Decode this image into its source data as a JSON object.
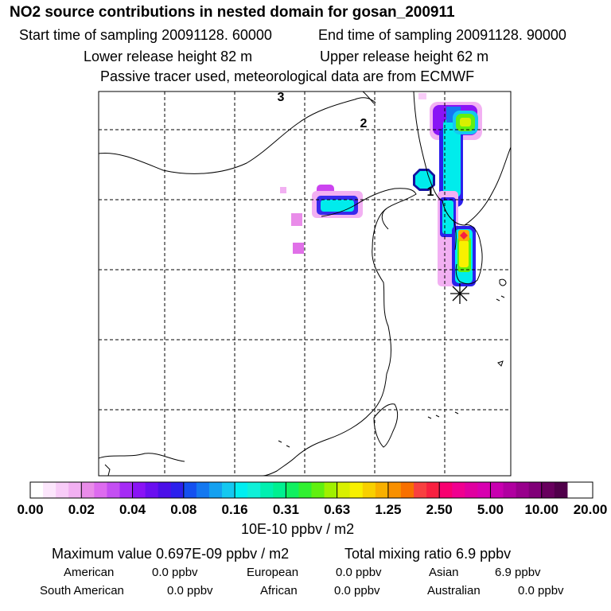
{
  "header": {
    "title": "NO2 source contributions in nested domain for gosan_200911",
    "start_time": "Start time of sampling 20091128. 60000",
    "end_time": "End time of sampling 20091128. 90000",
    "lower_height": "Lower release height   82 m",
    "upper_height": "Upper release height   62 m",
    "tracer_note": "Passive tracer used, meteorological data are from ECMWF"
  },
  "map": {
    "day_labels": [
      "3",
      "2",
      "1"
    ],
    "receptor_marker": "asterisk-icon",
    "colors": {
      "grid": "#000000",
      "coast": "#000000"
    }
  },
  "colorbar": {
    "ticks": [
      "0.00",
      "0.02",
      "0.04",
      "0.08",
      "0.16",
      "0.31",
      "0.63",
      "1.25",
      "2.50",
      "5.00",
      "10.00",
      "20.00"
    ],
    "colors": [
      "#ffffff",
      "#fce6fc",
      "#f8ccf8",
      "#f2b0f2",
      "#e98ce9",
      "#dd6bef",
      "#c44ff2",
      "#a52cf5",
      "#8a14f5",
      "#6a10f0",
      "#4b10e8",
      "#2c20ec",
      "#1450f0",
      "#1478f0",
      "#14a0f0",
      "#14c8f0",
      "#00eef0",
      "#10f0d8",
      "#00f0b0",
      "#00f090",
      "#10f060",
      "#30f030",
      "#60f010",
      "#a0f000",
      "#d8f000",
      "#f8f000",
      "#f8d000",
      "#f8b000",
      "#f89000",
      "#f87000",
      "#f84040",
      "#f82040",
      "#f80070",
      "#f00090",
      "#e000a0",
      "#d800b0",
      "#c800b0",
      "#b000a0",
      "#98008c",
      "#800078",
      "#68005e",
      "#50004a"
    ],
    "unit": "10E-10 ppbv / m2"
  },
  "summary": {
    "maximum": "Maximum value  0.697E-09 ppbv / m2",
    "total": "Total mixing ratio       6.9 ppbv",
    "sources": [
      {
        "name": "American",
        "value": "0.0 ppbv"
      },
      {
        "name": "European",
        "value": "0.0 ppbv"
      },
      {
        "name": "Asian",
        "value": "6.9 ppbv"
      },
      {
        "name": "South American",
        "value": "0.0 ppbv"
      },
      {
        "name": "African",
        "value": "0.0 ppbv"
      },
      {
        "name": "Australian",
        "value": "0.0 ppbv"
      }
    ]
  }
}
